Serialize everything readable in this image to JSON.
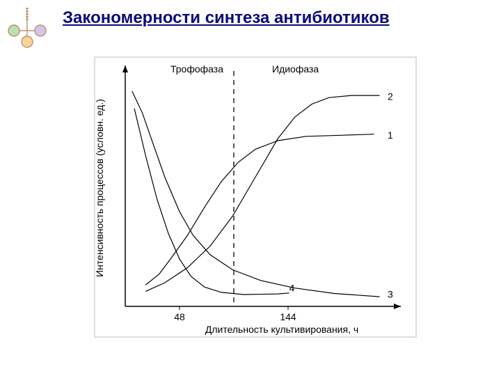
{
  "title": {
    "text": "Закономерности синтеза антибиотиков",
    "color": "#0b0b7a",
    "fontsize": 24
  },
  "logo": {
    "stroke": "#c09070",
    "fill_accents": [
      "#b9e0b0",
      "#d6c3e8",
      "#f5d69a"
    ]
  },
  "chart": {
    "type": "line",
    "background_color": "#ffffff",
    "axis_color": "#000000",
    "line_color": "#000000",
    "line_width": 1.2,
    "dash_color": "#000000",
    "xlabel": "Длительность культивирования, ч",
    "ylabel": "Интенсивность процессов (условн. ед.)",
    "label_fontsize": 14,
    "xlim": [
      0,
      240
    ],
    "ylim": [
      0,
      110
    ],
    "xticks": [
      {
        "value": 48,
        "label": "48"
      },
      {
        "value": 144,
        "label": "144"
      }
    ],
    "divider_x": 96,
    "phases": [
      {
        "label": "Трофофаза",
        "range": [
          0,
          96
        ]
      },
      {
        "label": "Идиофаза",
        "range": [
          96,
          240
        ]
      }
    ],
    "series": [
      {
        "id": "1",
        "label": "1",
        "label_x": 232,
        "label_y": 78,
        "points": [
          [
            18,
            10
          ],
          [
            30,
            15
          ],
          [
            40,
            22
          ],
          [
            55,
            33
          ],
          [
            70,
            46
          ],
          [
            85,
            58
          ],
          [
            100,
            67
          ],
          [
            115,
            73
          ],
          [
            135,
            77
          ],
          [
            160,
            79
          ],
          [
            190,
            79.5
          ],
          [
            220,
            80
          ]
        ]
      },
      {
        "id": "2",
        "label": "2",
        "label_x": 232,
        "label_y": 96,
        "points": [
          [
            18,
            7
          ],
          [
            35,
            11
          ],
          [
            55,
            18
          ],
          [
            75,
            28
          ],
          [
            95,
            42
          ],
          [
            115,
            60
          ],
          [
            135,
            78
          ],
          [
            150,
            88
          ],
          [
            165,
            94
          ],
          [
            180,
            97
          ],
          [
            200,
            98
          ],
          [
            225,
            98
          ]
        ]
      },
      {
        "id": "3",
        "label": "3",
        "label_x": 232,
        "label_y": 4,
        "points": [
          [
            6,
            100
          ],
          [
            15,
            90
          ],
          [
            25,
            75
          ],
          [
            35,
            60
          ],
          [
            48,
            44
          ],
          [
            60,
            33
          ],
          [
            75,
            24
          ],
          [
            95,
            17
          ],
          [
            120,
            12
          ],
          [
            150,
            8.5
          ],
          [
            185,
            6
          ],
          [
            225,
            4.5
          ]
        ]
      },
      {
        "id": "4",
        "label": "4",
        "label_x": 145,
        "label_y": 7,
        "points": [
          [
            8,
            92
          ],
          [
            18,
            70
          ],
          [
            28,
            50
          ],
          [
            38,
            34
          ],
          [
            48,
            22
          ],
          [
            58,
            14
          ],
          [
            70,
            9
          ],
          [
            85,
            6.5
          ],
          [
            105,
            5.5
          ],
          [
            135,
            5.8
          ],
          [
            145,
            6.2
          ]
        ]
      }
    ]
  }
}
